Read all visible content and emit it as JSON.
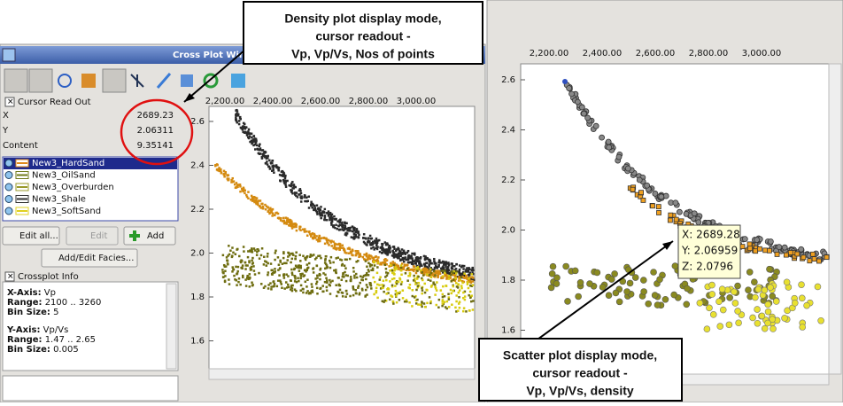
{
  "callouts": [
    {
      "lines": [
        "Density plot display mode,",
        "cursor readout  -",
        "Vp, Vp/Vs, Nos of points"
      ]
    },
    {
      "lines": [
        "Scatter plot display mode,",
        "cursor readout  -",
        "Vp, Vp/Vs, density"
      ]
    }
  ],
  "window": {
    "title": "Cross Plot Win",
    "cursor_readout": {
      "label": "Cursor Read Out",
      "rows": [
        [
          "X",
          "2689.23"
        ],
        [
          "Y",
          "2.06311"
        ],
        [
          "Content",
          "9.35141"
        ]
      ]
    },
    "layers": [
      "New3_HardSand",
      "New3_OilSand",
      "New3_Overburden",
      "New3_Shale",
      "New3_SoftSand"
    ],
    "buttons": {
      "edit_all": "Edit all...",
      "edit": "Edit",
      "add": "Add",
      "facies": "Add/Edit Facies..."
    },
    "crossplot_info": {
      "label": "Crossplot Info",
      "lines": [
        [
          [
            "X-Axis:",
            " Vp"
          ],
          [
            "Range:",
            " 2100 .. 3260"
          ],
          [
            "Bin Size:",
            " 5"
          ]
        ],
        [
          [
            "Y-Axis:",
            " Vp/Vs"
          ],
          [
            "Range:",
            " 1.47 .. 2.65"
          ],
          [
            "Bin Size:",
            " 0.005"
          ]
        ]
      ]
    },
    "plot": {
      "xticks": [
        "2,200.00",
        "2,400.00",
        "2,600.00",
        "2,800.00",
        "3,000.00"
      ],
      "yticks": [
        "2.6",
        "2.4",
        "2.2",
        "2.0",
        "1.8",
        "1.6"
      ]
    }
  },
  "scatter_plot": {
    "xticks": [
      "2,200.00",
      "2,400.00",
      "2,600.00",
      "2,800.00",
      "3,000.00"
    ],
    "yticks": [
      "2.6",
      "2.4",
      "2.2",
      "2.0",
      "1.8",
      "1.6"
    ],
    "tooltip": [
      "X: 2689.28",
      "Y: 2.06959",
      "Z: 2.0796"
    ]
  }
}
